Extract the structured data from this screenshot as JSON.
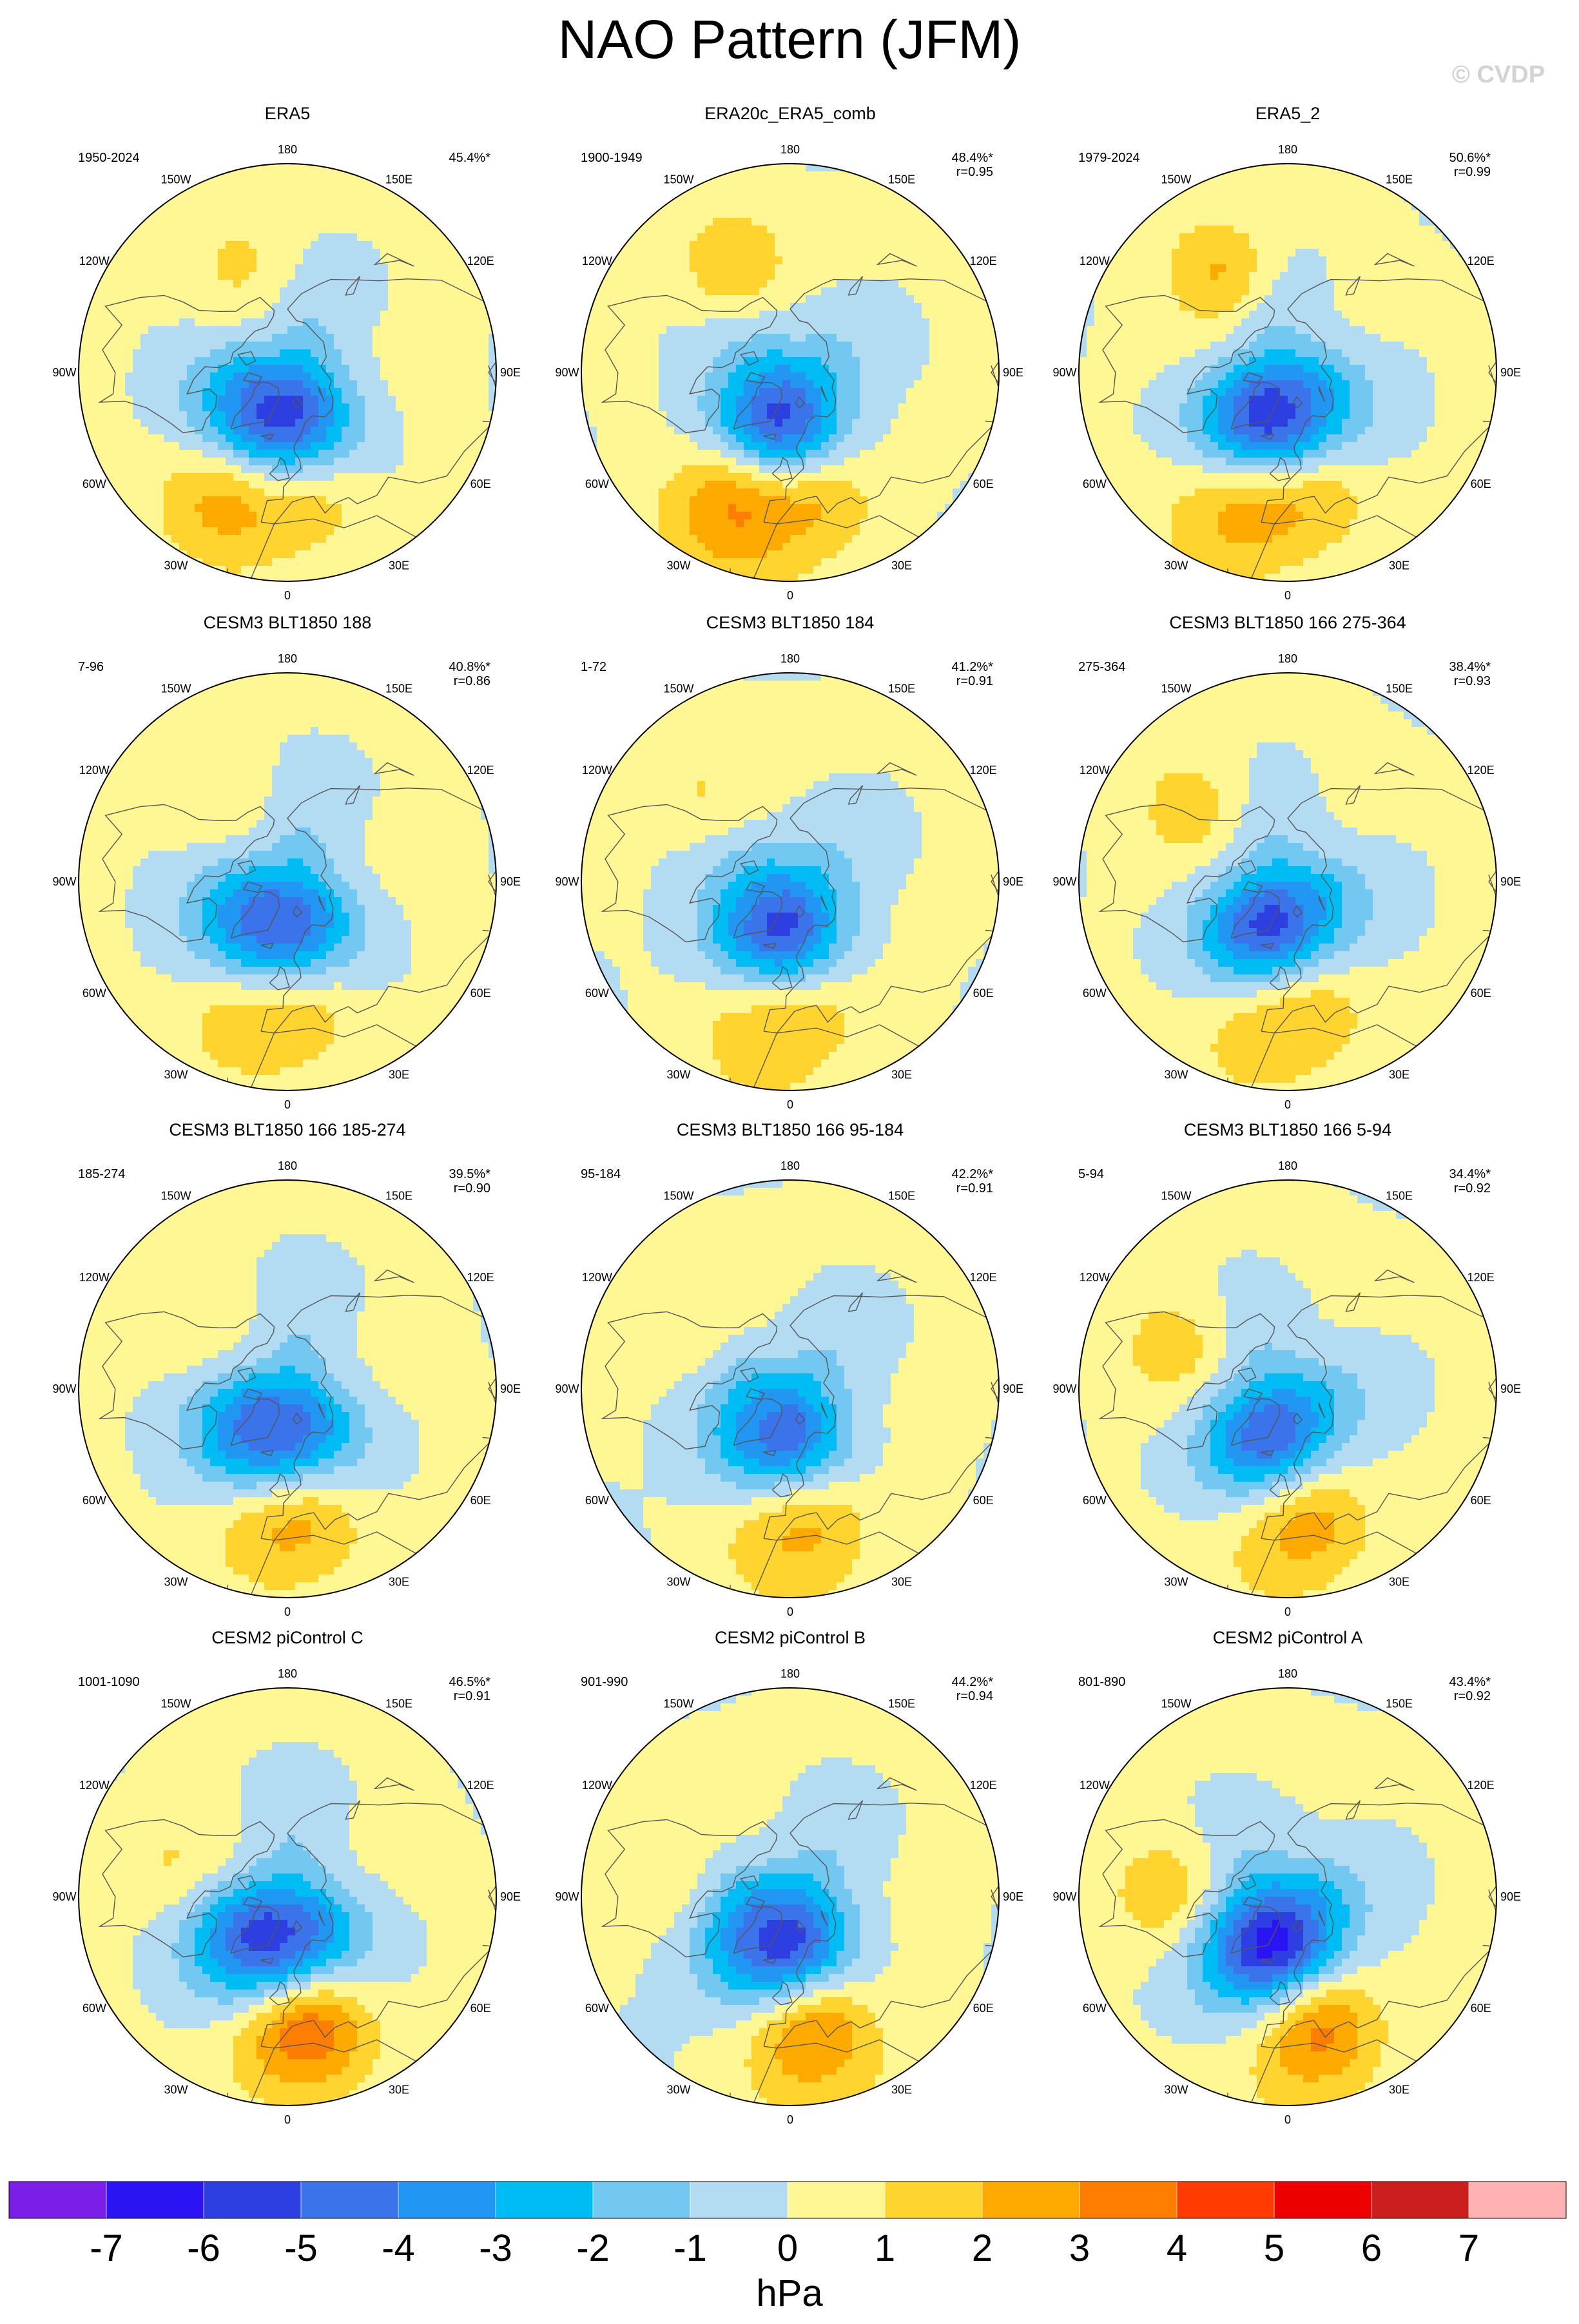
{
  "page": {
    "title": "NAO Pattern (JFM)",
    "credit": "© CVDP"
  },
  "chart_data": {
    "type": "polar-contour-map-panels",
    "variable": "NAO pattern (sea level pressure regression)",
    "season": "JFM",
    "units": "hPa",
    "longitude_labels": [
      "180",
      "150E",
      "120E",
      "90E",
      "60E",
      "30E",
      "0",
      "30W",
      "60W",
      "90W",
      "120W",
      "150W"
    ],
    "colorbar": {
      "tick_labels": [
        "-7",
        "-6",
        "-5",
        "-4",
        "-3",
        "-2",
        "-1",
        "0",
        "1",
        "2",
        "3",
        "4",
        "5",
        "6",
        "7"
      ],
      "colors": [
        "#7b1fe8",
        "#2a14f4",
        "#2d3fe0",
        "#3a73ea",
        "#2196f3",
        "#00bcf5",
        "#73c8f2",
        "#b3dcf2",
        "#fff694",
        "#ffd42e",
        "#ffaa00",
        "#ff7d00",
        "#ff3a00",
        "#ee0000",
        "#cc1e1e",
        "#ffb2b2"
      ],
      "units": "hPa"
    },
    "panels": [
      {
        "title": "ERA5",
        "years": "1950-2024",
        "pct": "45.4%*",
        "r": "",
        "amp": {
          "high": 3.5,
          "low": -5.5
        }
      },
      {
        "title": "ERA20c_ERA5_comb",
        "years": "1900-1949",
        "pct": "48.4%*",
        "r": "r=0.95",
        "amp": {
          "high": 4.5,
          "low": -5.0
        }
      },
      {
        "title": "ERA5_2",
        "years": "1979-2024",
        "pct": "50.6%*",
        "r": "r=0.99",
        "amp": {
          "high": 3.5,
          "low": -5.5
        }
      },
      {
        "title": "CESM3 BLT1850 188",
        "years": "7-96",
        "pct": "40.8%*",
        "r": "r=0.86",
        "amp": {
          "high": 2.5,
          "low": -5.0
        }
      },
      {
        "title": "CESM3 BLT1850 184",
        "years": "1-72",
        "pct": "41.2%*",
        "r": "r=0.91",
        "amp": {
          "high": 2.5,
          "low": -5.0
        }
      },
      {
        "title": "CESM3 BLT1850 166 275-364",
        "years": "275-364",
        "pct": "38.4%*",
        "r": "r=0.93",
        "amp": {
          "high": 2.5,
          "low": -5.0
        }
      },
      {
        "title": "CESM3 BLT1850 166 185-274",
        "years": "185-274",
        "pct": "39.5%*",
        "r": "r=0.90",
        "amp": {
          "high": 2.5,
          "low": -5.0
        }
      },
      {
        "title": "CESM3 BLT1850 166 95-184",
        "years": "95-184",
        "pct": "42.2%*",
        "r": "r=0.91",
        "amp": {
          "high": 2.5,
          "low": -4.5
        }
      },
      {
        "title": "CESM3 BLT1850 166 5-94",
        "years": "5-94",
        "pct": "34.4%*",
        "r": "r=0.92",
        "amp": {
          "high": 2.5,
          "low": -4.5
        }
      },
      {
        "title": "CESM2 piControl C",
        "years": "1001-1090",
        "pct": "46.5%*",
        "r": "r=0.91",
        "amp": {
          "high": 3.5,
          "low": -5.5
        }
      },
      {
        "title": "CESM2 piControl B",
        "years": "901-990",
        "pct": "44.2%*",
        "r": "r=0.94",
        "amp": {
          "high": 3.0,
          "low": -5.5
        }
      },
      {
        "title": "CESM2 piControl A",
        "years": "801-890",
        "pct": "43.4%*",
        "r": "r=0.92",
        "amp": {
          "high": 3.0,
          "low": -6.0
        }
      }
    ]
  }
}
